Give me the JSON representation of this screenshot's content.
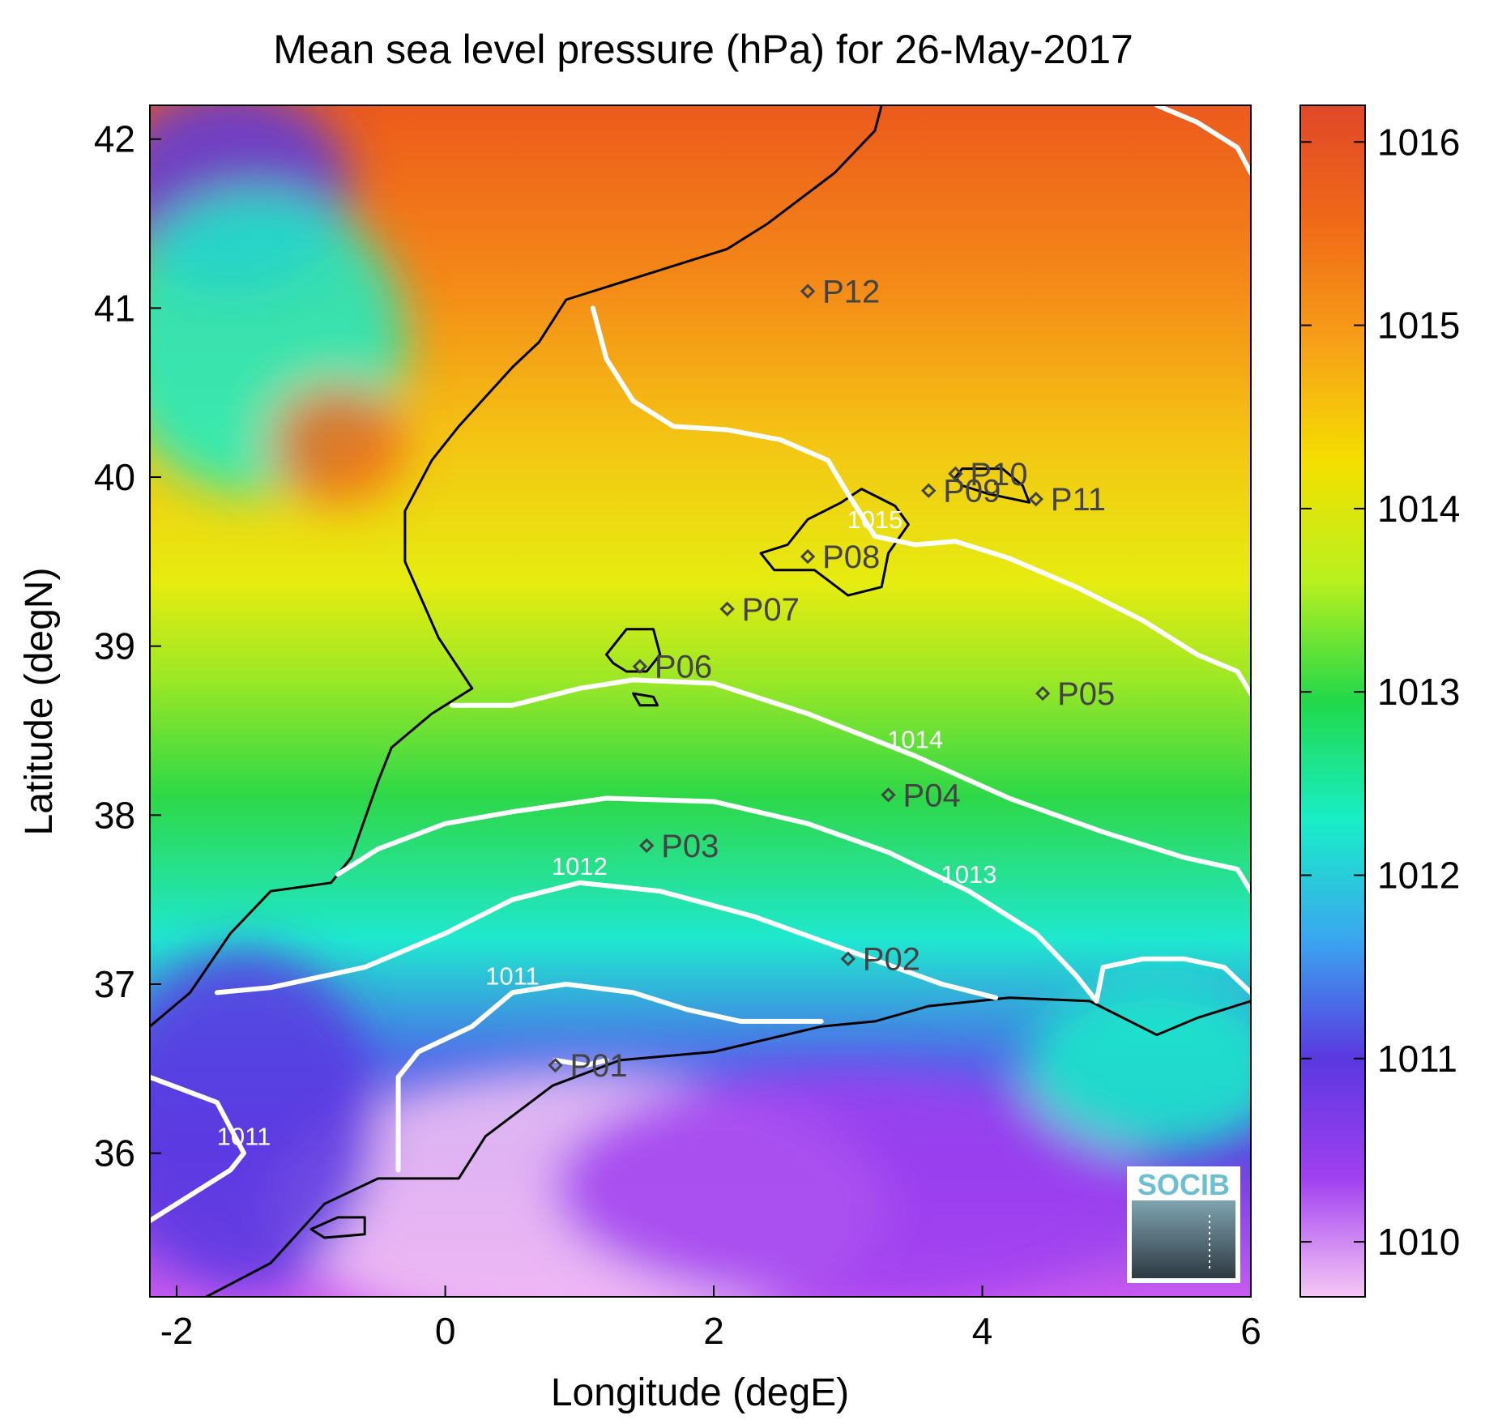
{
  "title": "Mean sea level pressure (hPa) for 26-May-2017",
  "xlabel": "Longitude (degE)",
  "ylabel": "Latitude (degN)",
  "x_ticks": [
    "-2",
    "0",
    "2",
    "4",
    "6"
  ],
  "y_ticks": [
    "36",
    "37",
    "38",
    "39",
    "40",
    "41",
    "42"
  ],
  "colorbar": {
    "ticks": [
      "1010",
      "1011",
      "1012",
      "1013",
      "1014",
      "1015",
      "1016"
    ],
    "range_hpa": [
      1009.7,
      1016.2
    ],
    "colors": [
      "#f5c8f5",
      "#a040f0",
      "#5a38e0",
      "#3aa6ef",
      "#19eec8",
      "#22d84a",
      "#b8f020",
      "#f4e000",
      "#f7a018",
      "#f06a18",
      "#e04828"
    ]
  },
  "logo": {
    "text": "SOCIB"
  },
  "stations": [
    {
      "id": "P01",
      "label": "P01",
      "lon": 0.82,
      "lat": 36.52
    },
    {
      "id": "P02",
      "label": "P02",
      "lon": 3.0,
      "lat": 37.15
    },
    {
      "id": "P03",
      "label": "P03",
      "lon": 1.5,
      "lat": 37.82
    },
    {
      "id": "P04",
      "label": "P04",
      "lon": 3.3,
      "lat": 38.12
    },
    {
      "id": "P05",
      "label": "P05",
      "lon": 4.45,
      "lat": 38.72
    },
    {
      "id": "P06",
      "label": "P06",
      "lon": 1.45,
      "lat": 38.88
    },
    {
      "id": "P07",
      "label": "P07",
      "lon": 2.1,
      "lat": 39.22
    },
    {
      "id": "P08",
      "label": "P08",
      "lon": 2.7,
      "lat": 39.53
    },
    {
      "id": "P09",
      "label": "P09",
      "lon": 3.6,
      "lat": 39.92
    },
    {
      "id": "P10",
      "label": "P10",
      "lon": 3.8,
      "lat": 40.02
    },
    {
      "id": "P11",
      "label": "P11",
      "lon": 4.4,
      "lat": 39.87
    },
    {
      "id": "P12",
      "label": "P12",
      "lon": 2.7,
      "lat": 41.1
    }
  ],
  "chart_data": {
    "type": "heatmap",
    "title": "Mean sea level pressure (hPa) for 26-May-2017",
    "xlabel": "Longitude (degE)",
    "ylabel": "Latitude (degN)",
    "xlim": [
      -2.2,
      6.0
    ],
    "ylim": [
      35.15,
      42.2
    ],
    "colorbar_range": [
      1009.7,
      1016.2
    ],
    "contours": [
      {
        "level": "1011",
        "label": "1011",
        "points": [
          [
            -2.2,
            35.6
          ],
          [
            -1.6,
            35.9
          ],
          [
            -1.5,
            36.0
          ],
          [
            -1.7,
            36.3
          ],
          [
            -2.2,
            36.45
          ]
        ]
      },
      {
        "level": "1011",
        "label": "1011",
        "points": [
          [
            -0.35,
            35.9
          ],
          [
            -0.35,
            36.1
          ],
          [
            -0.35,
            36.45
          ],
          [
            -0.2,
            36.6
          ],
          [
            0.2,
            36.75
          ],
          [
            0.5,
            36.95
          ],
          [
            0.9,
            37.0
          ],
          [
            1.4,
            36.95
          ],
          [
            1.8,
            36.85
          ],
          [
            2.2,
            36.78
          ],
          [
            2.8,
            36.78
          ]
        ]
      },
      {
        "level": "1011",
        "label": "",
        "points": [
          [
            0.82,
            36.55
          ],
          [
            1.05,
            36.52
          ],
          [
            1.2,
            36.55
          ]
        ]
      },
      {
        "level": "1012",
        "label": "1012",
        "points": [
          [
            -1.7,
            36.95
          ],
          [
            -1.3,
            36.98
          ],
          [
            -0.6,
            37.1
          ],
          [
            0.0,
            37.3
          ],
          [
            0.5,
            37.5
          ],
          [
            1.0,
            37.6
          ],
          [
            1.6,
            37.55
          ],
          [
            2.3,
            37.4
          ],
          [
            3.0,
            37.2
          ],
          [
            3.7,
            37.0
          ],
          [
            4.1,
            36.92
          ]
        ]
      },
      {
        "level": "1013",
        "label": "1013",
        "points": [
          [
            -0.8,
            37.65
          ],
          [
            -0.5,
            37.8
          ],
          [
            0.0,
            37.95
          ],
          [
            0.5,
            38.02
          ],
          [
            1.2,
            38.1
          ],
          [
            2.0,
            38.08
          ],
          [
            2.7,
            37.95
          ],
          [
            3.3,
            37.78
          ],
          [
            3.9,
            37.55
          ],
          [
            4.4,
            37.3
          ],
          [
            4.7,
            37.05
          ],
          [
            4.85,
            36.9
          ],
          [
            4.9,
            37.1
          ],
          [
            5.2,
            37.15
          ],
          [
            5.5,
            37.15
          ],
          [
            5.8,
            37.1
          ],
          [
            6.0,
            36.95
          ]
        ]
      },
      {
        "level": "1014",
        "label": "1014",
        "points": [
          [
            0.05,
            38.65
          ],
          [
            0.5,
            38.65
          ],
          [
            1.0,
            38.75
          ],
          [
            1.4,
            38.8
          ],
          [
            2.0,
            38.78
          ],
          [
            2.7,
            38.6
          ],
          [
            3.5,
            38.35
          ],
          [
            4.2,
            38.1
          ],
          [
            4.9,
            37.9
          ],
          [
            5.5,
            37.75
          ],
          [
            5.9,
            37.68
          ],
          [
            6.0,
            37.55
          ]
        ]
      },
      {
        "level": "1015",
        "label": "1015",
        "points": [
          [
            1.1,
            41.0
          ],
          [
            1.2,
            40.7
          ],
          [
            1.4,
            40.45
          ],
          [
            1.7,
            40.3
          ],
          [
            2.1,
            40.28
          ],
          [
            2.5,
            40.22
          ],
          [
            2.85,
            40.1
          ],
          [
            3.0,
            39.9
          ],
          [
            3.2,
            39.65
          ],
          [
            3.5,
            39.6
          ],
          [
            3.8,
            39.62
          ],
          [
            4.2,
            39.52
          ],
          [
            4.7,
            39.35
          ],
          [
            5.2,
            39.15
          ],
          [
            5.6,
            38.95
          ],
          [
            5.9,
            38.85
          ],
          [
            6.0,
            38.72
          ]
        ]
      },
      {
        "level": "1015",
        "label": "",
        "points": [
          [
            5.3,
            42.2
          ],
          [
            5.6,
            42.1
          ],
          [
            5.9,
            41.95
          ],
          [
            6.0,
            41.8
          ]
        ]
      }
    ],
    "coastlines": [
      {
        "name": "iberia",
        "points": [
          [
            -2.2,
            36.75
          ],
          [
            -1.9,
            36.95
          ],
          [
            -1.6,
            37.3
          ],
          [
            -1.3,
            37.55
          ],
          [
            -0.85,
            37.6
          ],
          [
            -0.7,
            37.75
          ],
          [
            -0.5,
            38.2
          ],
          [
            -0.4,
            38.4
          ],
          [
            -0.1,
            38.6
          ],
          [
            0.2,
            38.75
          ],
          [
            -0.05,
            39.05
          ],
          [
            -0.3,
            39.5
          ],
          [
            -0.3,
            39.8
          ],
          [
            -0.1,
            40.1
          ],
          [
            0.1,
            40.3
          ],
          [
            0.5,
            40.65
          ],
          [
            0.7,
            40.8
          ],
          [
            0.9,
            41.05
          ],
          [
            1.5,
            41.2
          ],
          [
            2.1,
            41.35
          ],
          [
            2.4,
            41.5
          ],
          [
            2.9,
            41.8
          ],
          [
            3.2,
            42.05
          ],
          [
            3.25,
            42.2
          ]
        ]
      },
      {
        "name": "africa",
        "points": [
          [
            -1.9,
            35.1
          ],
          [
            -1.3,
            35.35
          ],
          [
            -0.9,
            35.7
          ],
          [
            -0.5,
            35.85
          ],
          [
            0.1,
            35.85
          ],
          [
            0.3,
            36.1
          ],
          [
            0.8,
            36.4
          ],
          [
            1.3,
            36.55
          ],
          [
            2.0,
            36.6
          ],
          [
            2.8,
            36.75
          ],
          [
            3.2,
            36.78
          ],
          [
            3.6,
            36.87
          ],
          [
            4.2,
            36.92
          ],
          [
            4.8,
            36.9
          ],
          [
            5.3,
            36.7
          ],
          [
            5.6,
            36.8
          ],
          [
            6.0,
            36.9
          ]
        ]
      },
      {
        "name": "mallorca",
        "points": [
          [
            2.35,
            39.55
          ],
          [
            2.55,
            39.6
          ],
          [
            2.7,
            39.75
          ],
          [
            2.95,
            39.85
          ],
          [
            3.1,
            39.93
          ],
          [
            3.35,
            39.83
          ],
          [
            3.45,
            39.72
          ],
          [
            3.3,
            39.55
          ],
          [
            3.25,
            39.35
          ],
          [
            3.0,
            39.3
          ],
          [
            2.75,
            39.45
          ],
          [
            2.6,
            39.45
          ],
          [
            2.45,
            39.45
          ],
          [
            2.35,
            39.55
          ]
        ]
      },
      {
        "name": "menorca",
        "points": [
          [
            3.85,
            40.05
          ],
          [
            4.15,
            40.05
          ],
          [
            4.3,
            39.95
          ],
          [
            4.35,
            39.85
          ],
          [
            4.05,
            39.9
          ],
          [
            3.85,
            39.95
          ],
          [
            3.8,
            40.0
          ],
          [
            3.85,
            40.05
          ]
        ]
      },
      {
        "name": "ibiza",
        "points": [
          [
            1.2,
            38.95
          ],
          [
            1.35,
            39.1
          ],
          [
            1.55,
            39.1
          ],
          [
            1.6,
            38.95
          ],
          [
            1.5,
            38.85
          ],
          [
            1.35,
            38.85
          ],
          [
            1.25,
            38.9
          ],
          [
            1.2,
            38.95
          ]
        ]
      },
      {
        "name": "formentera",
        "points": [
          [
            1.4,
            38.72
          ],
          [
            1.55,
            38.7
          ],
          [
            1.58,
            38.65
          ],
          [
            1.45,
            38.65
          ],
          [
            1.4,
            38.72
          ]
        ]
      },
      {
        "name": "alboran_small",
        "points": [
          [
            -1.0,
            35.55
          ],
          [
            -0.8,
            35.62
          ],
          [
            -0.6,
            35.62
          ],
          [
            -0.6,
            35.52
          ],
          [
            -0.9,
            35.5
          ],
          [
            -1.0,
            35.55
          ]
        ]
      }
    ],
    "fields": [
      {
        "name": "africa_low",
        "lon": 1.0,
        "lat": 35.7,
        "value_hpa": 1009.8,
        "rx": 2.3,
        "ry": 0.8
      },
      {
        "name": "atlas_low",
        "lon": 3.0,
        "lat": 35.8,
        "value_hpa": 1010.5,
        "rx": 2.2,
        "ry": 0.7
      },
      {
        "name": "west_blue",
        "lon": -1.5,
        "lat": 36.2,
        "value_hpa": 1011.3,
        "rx": 1.0,
        "ry": 1.0
      },
      {
        "name": "inland_purple",
        "lon": -1.6,
        "lat": 41.7,
        "value_hpa": 1011.2,
        "rx": 0.9,
        "ry": 0.6
      },
      {
        "name": "inland_cyan",
        "lon": -1.4,
        "lat": 40.8,
        "value_hpa": 1012.3,
        "rx": 1.1,
        "ry": 0.9
      },
      {
        "name": "east_cyan",
        "lon": 5.3,
        "lat": 36.5,
        "value_hpa": 1012.2,
        "rx": 1.0,
        "ry": 0.5
      },
      {
        "name": "iberian_high",
        "lon": -0.8,
        "lat": 40.2,
        "value_hpa": 1015.6,
        "rx": 0.5,
        "ry": 0.35
      }
    ]
  }
}
